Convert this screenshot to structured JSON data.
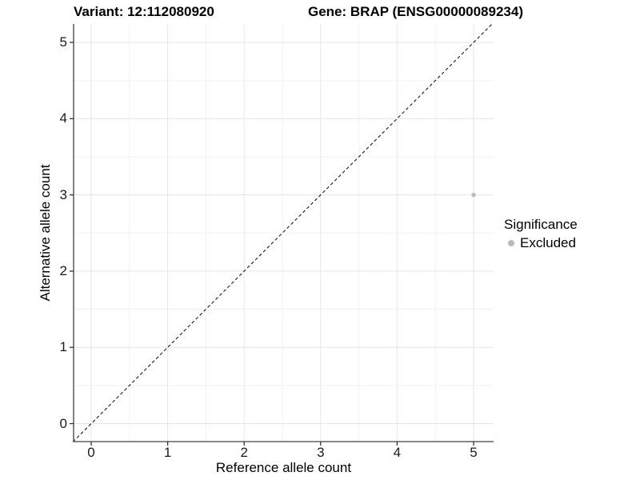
{
  "titles": {
    "left": "Variant: 12:112080920",
    "right": "Gene: BRAP (ENSG00000089234)"
  },
  "axes": {
    "x_label": "Reference allele count",
    "y_label": "Alternative allele count",
    "x_tick_labels": [
      "0",
      "1",
      "2",
      "3",
      "4",
      "5"
    ],
    "y_tick_labels": [
      "0",
      "1",
      "2",
      "3",
      "4",
      "5"
    ]
  },
  "legend": {
    "title": "Significance",
    "items": [
      {
        "label": "Excluded",
        "color": "#b9b9b9",
        "marker": "dot"
      }
    ]
  },
  "colors": {
    "background": "#ffffff",
    "grid_major": "#e6e6e6",
    "grid_minor": "#f2f2f2",
    "axis_line": "#404040",
    "tick_mark": "#333333",
    "point": "#b9b9b9",
    "reference_line": "#000000"
  },
  "chart_data": {
    "type": "scatter",
    "title_left": "Variant: 12:112080920",
    "title_right": "Gene: BRAP (ENSG00000089234)",
    "xlabel": "Reference allele count",
    "ylabel": "Alternative allele count",
    "xlim": [
      -0.24,
      5.24
    ],
    "ylim": [
      -0.24,
      5.24
    ],
    "x_ticks": [
      0,
      1,
      2,
      3,
      4,
      5
    ],
    "y_ticks": [
      0,
      1,
      2,
      3,
      4,
      5
    ],
    "grid": "major at integers, minor at 0.5 steps",
    "legend_position": "right",
    "series": [
      {
        "name": "Excluded",
        "color": "#b9b9b9",
        "points": [
          {
            "x": 5,
            "y": 3
          }
        ]
      }
    ],
    "reference_line": {
      "type": "identity y=x",
      "style": "dashed",
      "color": "#000000"
    }
  }
}
